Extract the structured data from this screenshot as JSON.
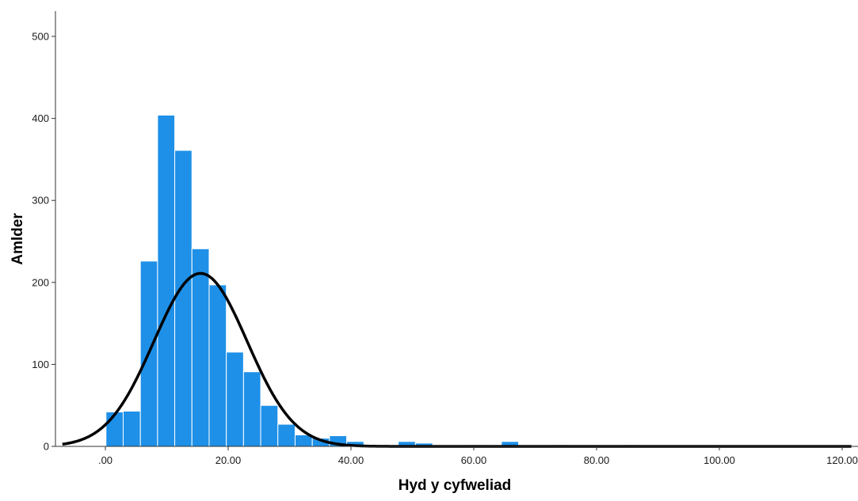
{
  "colors": {
    "bar_fill": "#1E90E8",
    "bar_stroke": "#ffffff",
    "curve": "#000000",
    "axis": "#333333",
    "background": "#ffffff"
  },
  "chart_data": {
    "type": "bar",
    "subtype": "histogram with fitted normal curve",
    "title": "",
    "xlabel": "Hyd y cyfweliad",
    "ylabel": "Amlder",
    "xlim": [
      -7.0,
      121.5
    ],
    "ylim": [
      0,
      520
    ],
    "x_ticks": [
      0,
      20,
      40,
      60,
      80,
      100,
      120
    ],
    "x_tick_labels": [
      ".00",
      "20.00",
      "40.00",
      "60.00",
      "80.00",
      "100.00",
      "120.00"
    ],
    "y_ticks": [
      0,
      100,
      200,
      300,
      400,
      500
    ],
    "y_tick_labels": [
      "0",
      "100",
      "200",
      "300",
      "400",
      "500"
    ],
    "grid": false,
    "legend": "none",
    "bin_width": 2.8,
    "bins": [
      {
        "x": 0.1,
        "value": 42
      },
      {
        "x": 2.9,
        "value": 43
      },
      {
        "x": 5.7,
        "value": 226
      },
      {
        "x": 8.5,
        "value": 404
      },
      {
        "x": 11.3,
        "value": 361
      },
      {
        "x": 14.1,
        "value": 241
      },
      {
        "x": 16.9,
        "value": 197
      },
      {
        "x": 19.7,
        "value": 115
      },
      {
        "x": 22.5,
        "value": 91
      },
      {
        "x": 25.3,
        "value": 50
      },
      {
        "x": 28.1,
        "value": 27
      },
      {
        "x": 30.9,
        "value": 14
      },
      {
        "x": 33.7,
        "value": 10
      },
      {
        "x": 36.5,
        "value": 13
      },
      {
        "x": 39.3,
        "value": 6
      },
      {
        "x": 42.1,
        "value": 2
      },
      {
        "x": 44.9,
        "value": 2
      },
      {
        "x": 47.7,
        "value": 6
      },
      {
        "x": 50.5,
        "value": 4
      },
      {
        "x": 53.3,
        "value": 1
      },
      {
        "x": 56.1,
        "value": 1
      },
      {
        "x": 58.9,
        "value": 2
      },
      {
        "x": 61.7,
        "value": 1
      },
      {
        "x": 64.5,
        "value": 6
      },
      {
        "x": 67.3,
        "value": 1
      },
      {
        "x": 70.1,
        "value": 1
      },
      {
        "x": 72.9,
        "value": 2
      },
      {
        "x": 75.7,
        "value": 1
      },
      {
        "x": 78.5,
        "value": 1
      },
      {
        "x": 81.3,
        "value": 1
      },
      {
        "x": 84.1,
        "value": 2
      },
      {
        "x": 86.9,
        "value": 1
      }
    ],
    "normal_curve": {
      "mean": 15.5,
      "sd": 7.6,
      "peak": 211
    }
  }
}
